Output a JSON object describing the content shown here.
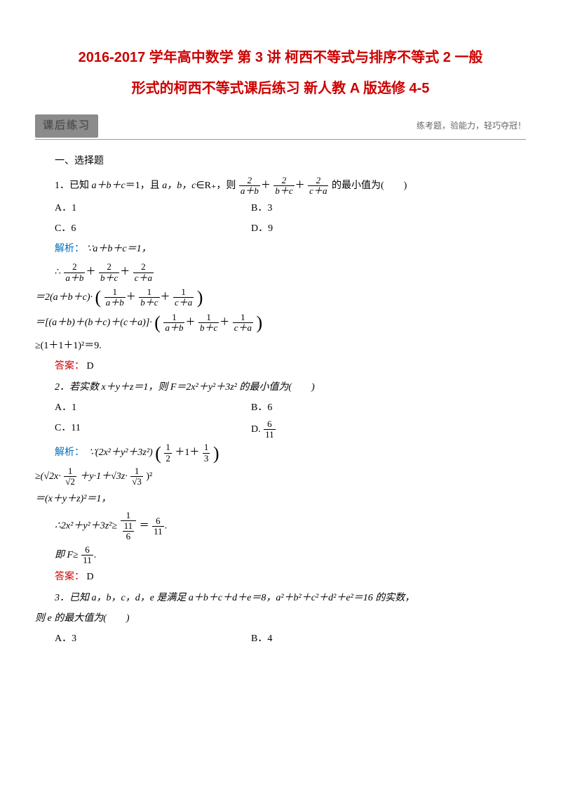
{
  "title": {
    "line1": "2016-2017 学年高中数学 第 3 讲 柯西不等式与排序不等式 2 一般",
    "line2": "形式的柯西不等式课后练习 新人教 A 版选修 4-5"
  },
  "section": {
    "label": "课后练习",
    "tagline": "练考题，验能力，轻巧夺冠！"
  },
  "heading1": "一、选择题",
  "q1": {
    "stem_l": "1．已知 ",
    "stem_m": "＝1，且 ",
    "stem_r": "∈R₊，则",
    "stem_tail": "的最小值为(　　)",
    "abc": "a＋b＋c",
    "list": "a，b，c",
    "fA_num": "2",
    "fA_den": "a＋b",
    "fB_num": "2",
    "fB_den": "b＋c",
    "fC_num": "2",
    "fC_den": "c＋a",
    "plus": "＋",
    "optA": "A．1",
    "optB": "B．3",
    "optC": "C．6",
    "optD": "D．9",
    "analysis_label": "解析：",
    "a1": "∵a＋b＋c＝1，",
    "therefore": "∴",
    "line3a": "＝2(a＋b＋c)·",
    "f1n": "1",
    "f1d": "a＋b",
    "f2n": "1",
    "f2d": "b＋c",
    "f3n": "1",
    "f3d": "c＋a",
    "line4a": "＝[(a＋b)＋(b＋c)＋(c＋a)]·",
    "line5": "≥(1＋1＋1)²＝9.",
    "answer_label": "答案：",
    "answer": "D"
  },
  "q2": {
    "stem": "2．若实数 x＋y＋z＝1，则 F＝2x²＋y²＋3z² 的最小值为(　　)",
    "optA": "A．1",
    "optB": "B．6",
    "optC": "C．11",
    "optD_pre": "D.",
    "fDn": "6",
    "fDd": "11",
    "analysis_label": "解析：",
    "l1a": "∵(2x²＋y²＋3z²)",
    "half_n": "1",
    "half_d": "2",
    "one": "＋1＋",
    "third_n": "1",
    "third_d": "3",
    "l2a": "≥(√2x·",
    "sq_half_n": "1",
    "sq_half_d": "√2",
    "l2b": "＋y·1＋√3z·",
    "sq_third_n": "1",
    "sq_third_d": "√3",
    "l2c": ")²",
    "l3": "＝(x＋y＋z)²＝1，",
    "l4a": "∴2x²＋y²＋3z²≥",
    "f4an": "1",
    "f4ad_n": "11",
    "f4ad_d": "6",
    "eq": "＝",
    "f4bn": "6",
    "f4bd": "11",
    "period": ".",
    "l5a": "即 F≥",
    "f5n": "6",
    "f5d": "11",
    "l5b": ".",
    "answer_label": "答案：",
    "answer": "D"
  },
  "q3": {
    "stem_l": "3．已知 a，b，c，d，e 是满足 a＋b＋c＋d＋e＝8，a²＋b²＋c²＋d²＋e²＝16 的实数，",
    "stem_2": "则 e 的最大值为(　　)",
    "optA": "A．3",
    "optB": "B．4"
  },
  "colors": {
    "title": "#cc0000",
    "blue": "#0070c0",
    "red": "#cc0000",
    "text": "#000000",
    "bg": "#ffffff"
  }
}
